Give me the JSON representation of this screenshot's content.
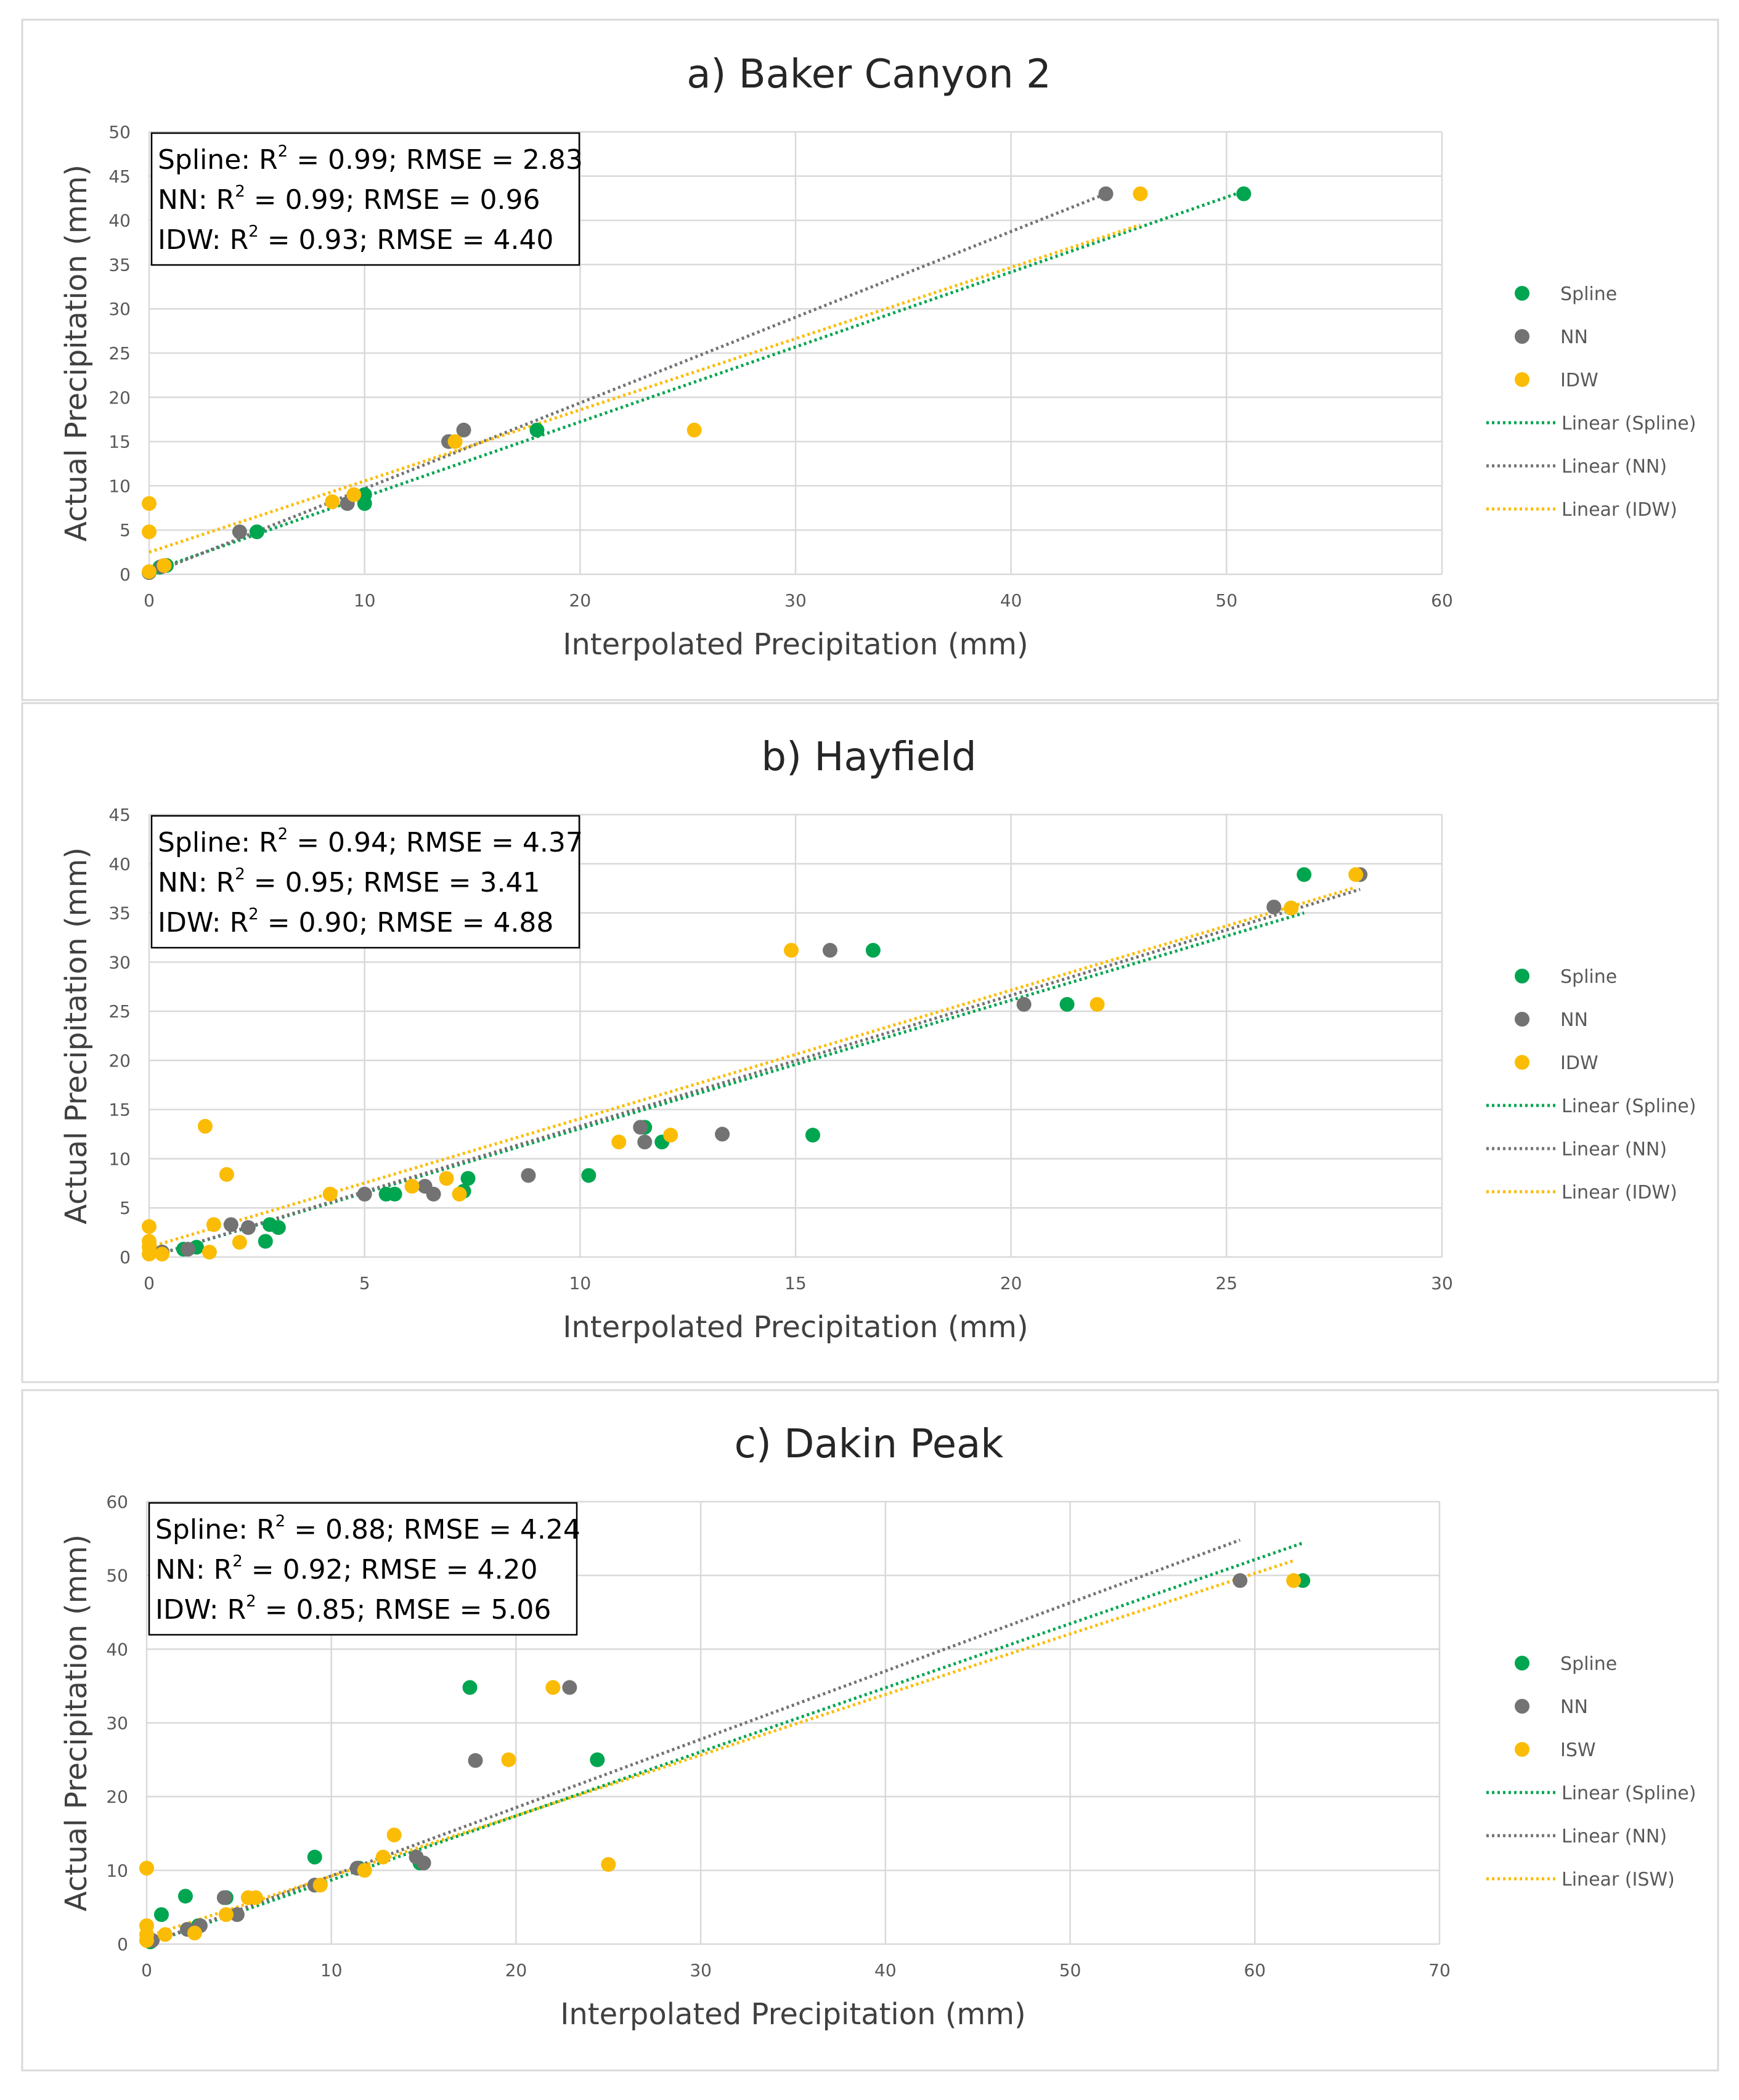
{
  "colors": {
    "spline": "#00a550",
    "nn": "#737373",
    "idw": "#fbbc05",
    "grid": "#d9d9d9",
    "axis_text": "#595959"
  },
  "chart_data": [
    {
      "type": "scatter",
      "title": "a) Baker Canyon 2",
      "xlabel": "Interpolated Precipitation (mm)",
      "ylabel": "Actual Precipitation (mm)",
      "xlim": [
        0,
        60
      ],
      "ylim": [
        0,
        50
      ],
      "xticks": [
        0,
        10,
        20,
        30,
        40,
        50,
        60
      ],
      "yticks": [
        0,
        5,
        10,
        15,
        20,
        25,
        30,
        35,
        40,
        45,
        50
      ],
      "stats": [
        {
          "pre": "Spline: R",
          "sup": "2",
          "post": " = 0.99; RMSE = 2.83"
        },
        {
          "pre": "NN: R",
          "sup": "2",
          "post": " = 0.99; RMSE = 0.96"
        },
        {
          "pre": "IDW: R",
          "sup": "2",
          "post": " = 0.93; RMSE = 4.40"
        }
      ],
      "series": [
        {
          "name": "Spline",
          "key": "spline",
          "trend_label": "Linear (Spline)",
          "points": [
            [
              0,
              0.2
            ],
            [
              0.5,
              0.8
            ],
            [
              0.8,
              1
            ],
            [
              5,
              4.8
            ],
            [
              10,
              8
            ],
            [
              10,
              9
            ],
            [
              18,
              16.3
            ],
            [
              50.8,
              43
            ]
          ],
          "trend": [
            [
              0,
              0.3
            ],
            [
              50.8,
              43.3
            ]
          ]
        },
        {
          "name": "NN",
          "key": "nn",
          "trend_label": "Linear (NN)",
          "points": [
            [
              0,
              0.2
            ],
            [
              0.6,
              0.9
            ],
            [
              4.2,
              4.8
            ],
            [
              9.2,
              8
            ],
            [
              13.9,
              15
            ],
            [
              14.6,
              16.3
            ],
            [
              44.4,
              43
            ]
          ],
          "trend": [
            [
              0,
              0
            ],
            [
              44.4,
              43
            ]
          ]
        },
        {
          "name": "IDW",
          "key": "idw",
          "trend_label": "Linear (IDW)",
          "points": [
            [
              0,
              8
            ],
            [
              0,
              4.8
            ],
            [
              0,
              0.3
            ],
            [
              0.7,
              1
            ],
            [
              8.5,
              8.2
            ],
            [
              9.5,
              9
            ],
            [
              14.2,
              15
            ],
            [
              25.3,
              16.3
            ],
            [
              46,
              43
            ]
          ],
          "trend": [
            [
              0,
              2.5
            ],
            [
              46,
              39.5
            ]
          ]
        }
      ]
    },
    {
      "type": "scatter",
      "title": "b) Hayfield",
      "xlabel": "Interpolated Precipitation (mm)",
      "ylabel": "Actual Precipitation (mm)",
      "xlim": [
        0,
        30
      ],
      "ylim": [
        0,
        45
      ],
      "xticks": [
        0,
        5,
        10,
        15,
        20,
        25,
        30
      ],
      "yticks": [
        0,
        5,
        10,
        15,
        20,
        25,
        30,
        35,
        40,
        45
      ],
      "stats": [
        {
          "pre": "Spline: R",
          "sup": "2",
          "post": " = 0.94; RMSE = 4.37"
        },
        {
          "pre": "NN: R",
          "sup": "2",
          "post": " = 0.95; RMSE = 3.41"
        },
        {
          "pre": "IDW: R",
          "sup": "2",
          "post": " = 0.90; RMSE = 4.88"
        }
      ],
      "series": [
        {
          "name": "Spline",
          "key": "spline",
          "trend_label": "Linear (Spline)",
          "points": [
            [
              0.3,
              0.5
            ],
            [
              0.8,
              0.8
            ],
            [
              1.1,
              1
            ],
            [
              2.7,
              1.6
            ],
            [
              2.8,
              3.3
            ],
            [
              3,
              3
            ],
            [
              5.5,
              6.4
            ],
            [
              5.7,
              6.4
            ],
            [
              7.3,
              6.7
            ],
            [
              7.4,
              8
            ],
            [
              10.2,
              8.3
            ],
            [
              11.5,
              13.2
            ],
            [
              11.9,
              11.7
            ],
            [
              15.4,
              12.4
            ],
            [
              16.8,
              31.2
            ],
            [
              21.3,
              25.7
            ],
            [
              26.5,
              35.5
            ],
            [
              26.8,
              38.9
            ]
          ],
          "trend": [
            [
              0,
              0
            ],
            [
              26.8,
              35
            ]
          ]
        },
        {
          "name": "NN",
          "key": "nn",
          "trend_label": "Linear (NN)",
          "points": [
            [
              0.3,
              0.5
            ],
            [
              0.9,
              0.8
            ],
            [
              1.9,
              3.3
            ],
            [
              2.3,
              3
            ],
            [
              5,
              6.4
            ],
            [
              6.4,
              7.2
            ],
            [
              6.6,
              6.4
            ],
            [
              8.8,
              8.3
            ],
            [
              11.4,
              13.2
            ],
            [
              11.5,
              11.7
            ],
            [
              13.3,
              12.5
            ],
            [
              15.8,
              31.2
            ],
            [
              20.3,
              25.7
            ],
            [
              26.1,
              35.6
            ],
            [
              28.1,
              38.9
            ]
          ],
          "trend": [
            [
              0,
              0
            ],
            [
              28.1,
              37.4
            ]
          ]
        },
        {
          "name": "IDW",
          "key": "idw",
          "trend_label": "Linear (IDW)",
          "points": [
            [
              0,
              3.1
            ],
            [
              0,
              1.6
            ],
            [
              0,
              1
            ],
            [
              0,
              0.3
            ],
            [
              0.3,
              0.3
            ],
            [
              1.3,
              13.3
            ],
            [
              1.4,
              0.5
            ],
            [
              1.5,
              3.3
            ],
            [
              1.8,
              8.4
            ],
            [
              2.1,
              1.5
            ],
            [
              4.2,
              6.4
            ],
            [
              6.1,
              7.2
            ],
            [
              6.9,
              8
            ],
            [
              7.2,
              6.4
            ],
            [
              10.9,
              11.7
            ],
            [
              12.1,
              12.4
            ],
            [
              14.9,
              31.2
            ],
            [
              22,
              25.7
            ],
            [
              26.5,
              35.5
            ],
            [
              28,
              38.9
            ]
          ],
          "trend": [
            [
              0,
              1
            ],
            [
              28,
              37.6
            ]
          ]
        }
      ]
    },
    {
      "type": "scatter",
      "title": "c) Dakin Peak",
      "xlabel": "Interpolated Precipitation (mm)",
      "ylabel": "Actual Precipitation (mm)",
      "xlim": [
        0,
        70
      ],
      "ylim": [
        0,
        60
      ],
      "xticks": [
        0,
        10,
        20,
        30,
        40,
        50,
        60,
        70
      ],
      "yticks": [
        0,
        10,
        20,
        30,
        40,
        50,
        60
      ],
      "stats": [
        {
          "pre": "Spline: R",
          "sup": "2",
          "post": " = 0.88; RMSE = 4.24"
        },
        {
          "pre": "NN: R",
          "sup": "2",
          "post": " = 0.92; RMSE = 4.20"
        },
        {
          "pre": "IDW: R",
          "sup": "2",
          "post": " = 0.85; RMSE = 5.06"
        }
      ],
      "series": [
        {
          "name": "Spline",
          "key": "spline",
          "trend_label": "Linear (Spline)",
          "points": [
            [
              0.2,
              0.3
            ],
            [
              0.8,
              4
            ],
            [
              2.1,
              6.5
            ],
            [
              2.8,
              2.5
            ],
            [
              4.3,
              6.3
            ],
            [
              9.1,
              11.8
            ],
            [
              11.5,
              10.3
            ],
            [
              14.8,
              11
            ],
            [
              17.5,
              34.8
            ],
            [
              24.4,
              25
            ],
            [
              62.6,
              49.3
            ]
          ],
          "trend": [
            [
              0,
              0
            ],
            [
              62.6,
              54.4
            ]
          ]
        },
        {
          "name": "NN",
          "key": "nn",
          "trend_label": "Linear (NN)",
          "points": [
            [
              0.3,
              0.5
            ],
            [
              2.2,
              2
            ],
            [
              2.9,
              2.5
            ],
            [
              4.2,
              6.3
            ],
            [
              4.9,
              4
            ],
            [
              9.1,
              8
            ],
            [
              11.4,
              10.3
            ],
            [
              14.6,
              11.8
            ],
            [
              15,
              11
            ],
            [
              17.8,
              24.9
            ],
            [
              22.9,
              34.8
            ],
            [
              59.2,
              49.3
            ]
          ],
          "trend": [
            [
              0,
              0
            ],
            [
              59.2,
              54.8
            ]
          ]
        },
        {
          "name": "ISW",
          "key": "idw",
          "trend_label": "Linear (ISW)",
          "points": [
            [
              0,
              10.3
            ],
            [
              0,
              2.5
            ],
            [
              0,
              1.3
            ],
            [
              0,
              0.5
            ],
            [
              1,
              1.3
            ],
            [
              2.6,
              1.5
            ],
            [
              4.3,
              4
            ],
            [
              5.5,
              6.3
            ],
            [
              5.9,
              6.3
            ],
            [
              9.4,
              8
            ],
            [
              11.8,
              10
            ],
            [
              12.8,
              11.8
            ],
            [
              13.4,
              14.8
            ],
            [
              19.6,
              25
            ],
            [
              22,
              34.8
            ],
            [
              25,
              10.8
            ],
            [
              62.1,
              49.3
            ]
          ],
          "trend": [
            [
              0,
              1
            ],
            [
              62.1,
              52
            ]
          ]
        }
      ]
    }
  ]
}
